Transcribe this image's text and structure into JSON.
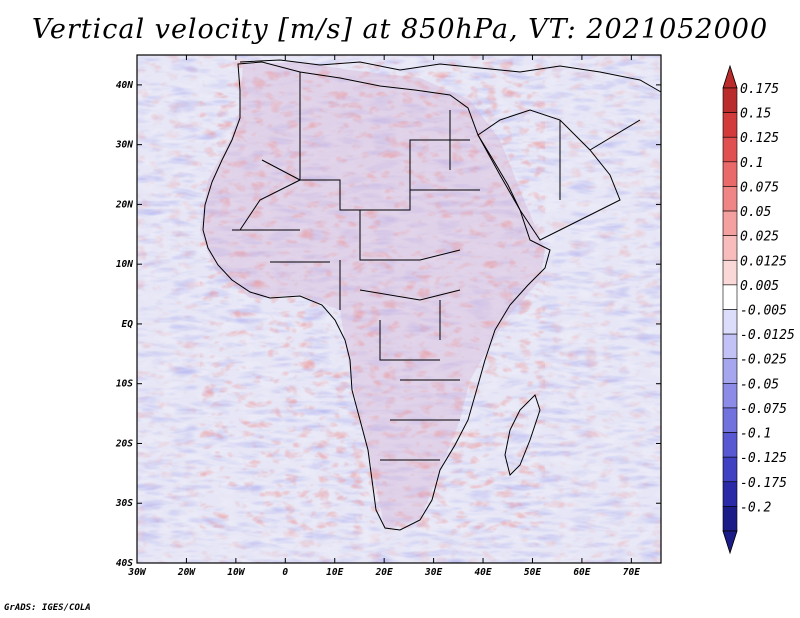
{
  "title": "Vertical velocity [m/s] at 850hPa, VT: 2021052000",
  "credit": "GrADS: IGES/COLA",
  "map": {
    "lon_labels": [
      "30W",
      "20W",
      "10W",
      "0",
      "10E",
      "20E",
      "30E",
      "40E",
      "50E",
      "60E",
      "70E"
    ],
    "lat_labels": [
      "40N",
      "30N",
      "20N",
      "10N",
      "EQ",
      "10S",
      "20S",
      "30S",
      "40S"
    ],
    "lon_range": [
      -30,
      76
    ],
    "lat_range": [
      -40,
      45
    ]
  },
  "colorbar": {
    "labels": [
      "0.175",
      "0.15",
      "0.125",
      "0.1",
      "0.075",
      "0.05",
      "0.025",
      "0.0125",
      "0.005",
      "-0.005",
      "-0.0125",
      "-0.025",
      "-0.05",
      "-0.075",
      "-0.1",
      "-0.125",
      "-0.175",
      "-0.2"
    ],
    "colors": [
      "#ba2b2b",
      "#d33a3a",
      "#e05050",
      "#ea6a6a",
      "#f08585",
      "#f5a0a0",
      "#f8bcbc",
      "#fbd8d8",
      "#ffffff",
      "#dcdcfb",
      "#c2c2f6",
      "#a6a6ef",
      "#8c8ce8",
      "#7272de",
      "#5858d2",
      "#4040c2",
      "#2a2aa8",
      "#1c1c88"
    ]
  }
}
